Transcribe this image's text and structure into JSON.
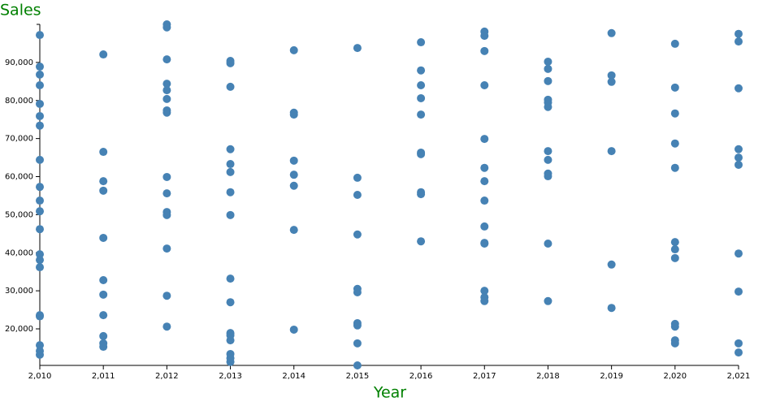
{
  "chart_data": {
    "type": "scatter",
    "y_label": "Sales",
    "x_label": "Year",
    "color": "#4682b4",
    "label_color": "#008000",
    "x": [
      2010,
      2010,
      2010,
      2010,
      2010,
      2010,
      2010,
      2010,
      2010,
      2010,
      2010,
      2010,
      2010,
      2010,
      2010,
      2010,
      2010,
      2010,
      2010,
      2010,
      2011,
      2011,
      2011,
      2011,
      2011,
      2011,
      2011,
      2011,
      2011,
      2011,
      2011,
      2012,
      2012,
      2012,
      2012,
      2012,
      2012,
      2012,
      2012,
      2012,
      2012,
      2012,
      2012,
      2012,
      2012,
      2012,
      2013,
      2013,
      2013,
      2013,
      2013,
      2013,
      2013,
      2013,
      2013,
      2013,
      2013,
      2013,
      2013,
      2013,
      2013,
      2013,
      2014,
      2014,
      2014,
      2014,
      2014,
      2014,
      2014,
      2014,
      2015,
      2015,
      2015,
      2015,
      2015,
      2015,
      2015,
      2015,
      2015,
      2015,
      2016,
      2016,
      2016,
      2016,
      2016,
      2016,
      2016,
      2016,
      2016,
      2016,
      2017,
      2017,
      2017,
      2017,
      2017,
      2017,
      2017,
      2017,
      2017,
      2017,
      2017,
      2017,
      2017,
      2017,
      2018,
      2018,
      2018,
      2018,
      2018,
      2018,
      2018,
      2018,
      2018,
      2018,
      2018,
      2018,
      2019,
      2019,
      2019,
      2019,
      2019,
      2019,
      2020,
      2020,
      2020,
      2020,
      2020,
      2020,
      2020,
      2020,
      2020,
      2020,
      2020,
      2020,
      2021,
      2021,
      2021,
      2021,
      2021,
      2021,
      2021,
      2021,
      2021,
      2021
    ],
    "values": [
      97200,
      88900,
      86800,
      84000,
      79100,
      75900,
      73400,
      64400,
      57300,
      53700,
      50900,
      46200,
      39600,
      38100,
      36200,
      23600,
      23300,
      15700,
      14200,
      13200,
      92100,
      66500,
      58800,
      56300,
      43900,
      32800,
      29000,
      23600,
      18100,
      16200,
      15300,
      100000,
      99200,
      90800,
      84400,
      82700,
      80400,
      77400,
      76800,
      59900,
      55600,
      50700,
      49900,
      41100,
      28700,
      20600,
      90400,
      89800,
      83600,
      67200,
      63300,
      61200,
      55900,
      49900,
      33200,
      27000,
      18900,
      18300,
      17000,
      13400,
      12300,
      11300,
      93200,
      76800,
      76300,
      64200,
      60500,
      57600,
      46000,
      19800,
      93800,
      59700,
      55200,
      44800,
      30500,
      29600,
      21500,
      20900,
      16200,
      10400,
      95300,
      87900,
      84000,
      80600,
      76300,
      66300,
      65900,
      55900,
      55400,
      43000,
      98100,
      97000,
      93000,
      84000,
      69900,
      62300,
      58800,
      53700,
      46900,
      42600,
      42400,
      30000,
      28300,
      27300,
      90200,
      88300,
      85100,
      80200,
      79500,
      78300,
      66700,
      64400,
      60800,
      60100,
      42400,
      27300,
      97700,
      86600,
      84900,
      66700,
      36900,
      25500,
      94900,
      83400,
      76600,
      68700,
      62300,
      42800,
      40900,
      38600,
      21300,
      20600,
      17000,
      16200,
      97500,
      95500,
      83200,
      67200,
      65000,
      63100,
      39800,
      29800,
      16200,
      13800
    ],
    "xlim": [
      2010,
      2021
    ],
    "xticks": [
      {
        "value": 2010,
        "label": "2,010"
      },
      {
        "value": 2011,
        "label": "2,011"
      },
      {
        "value": 2012,
        "label": "2,012"
      },
      {
        "value": 2013,
        "label": "2,013"
      },
      {
        "value": 2014,
        "label": "2,014"
      },
      {
        "value": 2015,
        "label": "2,015"
      },
      {
        "value": 2016,
        "label": "2,016"
      },
      {
        "value": 2017,
        "label": "2,017"
      },
      {
        "value": 2018,
        "label": "2,018"
      },
      {
        "value": 2019,
        "label": "2,019"
      },
      {
        "value": 2020,
        "label": "2,020"
      },
      {
        "value": 2021,
        "label": "2,021"
      }
    ],
    "ylim": [
      10400,
      100000
    ],
    "yticks": [
      {
        "value": 20000,
        "label": "20,000"
      },
      {
        "value": 30000,
        "label": "30,000"
      },
      {
        "value": 40000,
        "label": "40,000"
      },
      {
        "value": 50000,
        "label": "50,000"
      },
      {
        "value": 60000,
        "label": "60,000"
      },
      {
        "value": 70000,
        "label": "70,000"
      },
      {
        "value": 80000,
        "label": "80,000"
      },
      {
        "value": 90000,
        "label": "90,000"
      }
    ]
  }
}
